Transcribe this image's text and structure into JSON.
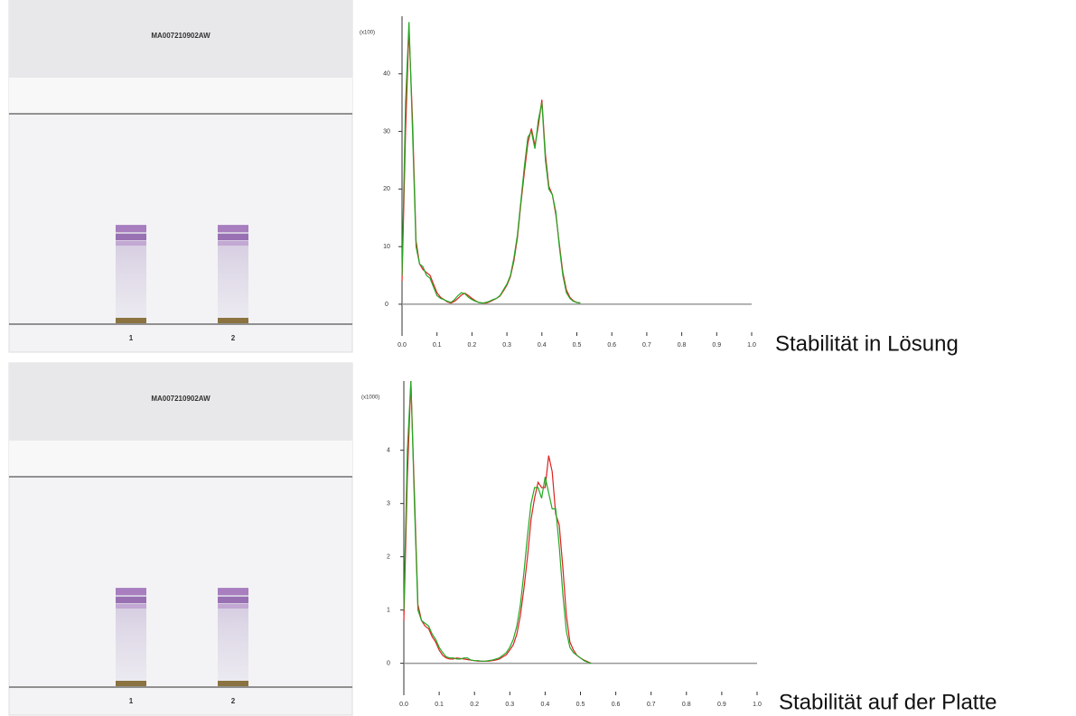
{
  "plates": [
    {
      "title": "MA007210902AW",
      "lanes": [
        "1",
        "2"
      ]
    },
    {
      "title": "MA007210902AW",
      "lanes": [
        "1",
        "2"
      ]
    }
  ],
  "chart_data": [
    {
      "type": "line",
      "title": "Stabilität in Lösung",
      "y_unit": "(x100)",
      "x": [
        0,
        0.01,
        0.02,
        0.03,
        0.04,
        0.05,
        0.06,
        0.07,
        0.08,
        0.09,
        0.1,
        0.11,
        0.12,
        0.13,
        0.14,
        0.15,
        0.16,
        0.17,
        0.18,
        0.19,
        0.2,
        0.21,
        0.22,
        0.23,
        0.24,
        0.25,
        0.26,
        0.27,
        0.28,
        0.29,
        0.3,
        0.31,
        0.32,
        0.33,
        0.34,
        0.35,
        0.36,
        0.37,
        0.38,
        0.39,
        0.4,
        0.41,
        0.42,
        0.43,
        0.44,
        0.45,
        0.46,
        0.47,
        0.48,
        0.49,
        0.5,
        0.51
      ],
      "series": [
        {
          "color": "#e02020",
          "values": [
            4,
            30,
            48,
            32,
            11,
            7,
            6,
            5.5,
            5,
            3.5,
            2,
            1.2,
            0.8,
            0.4,
            0.2,
            0.5,
            1,
            1.6,
            1.9,
            1.5,
            1,
            0.6,
            0.3,
            0.2,
            0.2,
            0.4,
            0.7,
            1,
            1.4,
            2.3,
            3.3,
            4.8,
            7.5,
            11.5,
            17.5,
            23,
            28,
            30.5,
            27.5,
            31,
            35.5,
            26,
            20.5,
            19,
            15.5,
            10.5,
            5.5,
            2.5,
            1.2,
            0.6,
            0.3,
            0.2
          ]
        },
        {
          "color": "#22a822",
          "values": [
            5,
            35,
            49,
            30,
            10,
            7,
            6.5,
            5,
            4.5,
            3,
            1.5,
            1,
            0.8,
            0.5,
            0.3,
            0.8,
            1.5,
            2,
            1.8,
            1.2,
            0.8,
            0.5,
            0.3,
            0.2,
            0.3,
            0.5,
            0.8,
            1,
            1.5,
            2.5,
            3.5,
            5,
            8,
            12,
            18,
            24,
            29,
            30,
            27,
            32,
            35,
            25,
            20,
            19,
            16,
            10,
            5,
            2,
            1,
            0.5,
            0.3,
            0.2
          ]
        }
      ],
      "xlim": [
        0,
        1
      ],
      "ylim": [
        -5.5,
        50
      ],
      "xticks": [
        {
          "value": 0,
          "label": "0.0"
        },
        0.1,
        0.2,
        0.3,
        0.4,
        0.5,
        0.6,
        0.7,
        0.8,
        0.9,
        {
          "value": 1,
          "label": "1.0"
        }
      ],
      "yticks": [
        0,
        10,
        20,
        30,
        40
      ]
    },
    {
      "type": "line",
      "title": "Stabilität auf der Platte",
      "y_unit": "(x1000)",
      "x": [
        0,
        0.01,
        0.02,
        0.03,
        0.04,
        0.05,
        0.06,
        0.07,
        0.08,
        0.09,
        0.1,
        0.11,
        0.12,
        0.13,
        0.14,
        0.15,
        0.16,
        0.17,
        0.18,
        0.19,
        0.2,
        0.21,
        0.22,
        0.23,
        0.24,
        0.25,
        0.26,
        0.27,
        0.28,
        0.29,
        0.3,
        0.31,
        0.32,
        0.33,
        0.34,
        0.35,
        0.36,
        0.37,
        0.38,
        0.39,
        0.4,
        0.41,
        0.42,
        0.43,
        0.44,
        0.45,
        0.46,
        0.47,
        0.48,
        0.49,
        0.5,
        0.51,
        0.52,
        0.53
      ],
      "series": [
        {
          "color": "#e02020",
          "values": [
            0.8,
            3.5,
            5.3,
            3.2,
            1.1,
            0.8,
            0.7,
            0.65,
            0.5,
            0.4,
            0.25,
            0.15,
            0.1,
            0.08,
            0.08,
            0.1,
            0.09,
            0.08,
            0.07,
            0.06,
            0.05,
            0.04,
            0.04,
            0.04,
            0.04,
            0.05,
            0.06,
            0.08,
            0.12,
            0.16,
            0.25,
            0.35,
            0.55,
            0.9,
            1.4,
            2.0,
            2.7,
            3.1,
            3.4,
            3.3,
            3.3,
            3.9,
            3.6,
            2.8,
            2.6,
            1.8,
            0.9,
            0.4,
            0.25,
            0.15,
            0.1,
            0.06,
            0.03,
            0
          ]
        },
        {
          "color": "#22a822",
          "values": [
            1,
            4,
            5.3,
            3,
            1,
            0.8,
            0.75,
            0.7,
            0.55,
            0.45,
            0.3,
            0.2,
            0.12,
            0.1,
            0.1,
            0.08,
            0.08,
            0.1,
            0.1,
            0.06,
            0.05,
            0.05,
            0.04,
            0.04,
            0.05,
            0.06,
            0.08,
            0.1,
            0.15,
            0.2,
            0.3,
            0.45,
            0.7,
            1.1,
            1.7,
            2.4,
            3.0,
            3.3,
            3.3,
            3.1,
            3.5,
            3.2,
            2.9,
            2.9,
            2.2,
            1.3,
            0.6,
            0.3,
            0.2,
            0.15,
            0.1,
            0.05,
            0.02,
            0
          ]
        }
      ],
      "xlim": [
        0,
        1
      ],
      "ylim": [
        -0.6,
        5.3
      ],
      "xticks": [
        {
          "value": 0,
          "label": "0.0"
        },
        0.1,
        0.2,
        0.3,
        0.4,
        0.5,
        0.6,
        0.7,
        0.8,
        0.9,
        {
          "value": 1,
          "label": "1.0"
        }
      ],
      "yticks": [
        0,
        1,
        2,
        3,
        4
      ]
    }
  ]
}
